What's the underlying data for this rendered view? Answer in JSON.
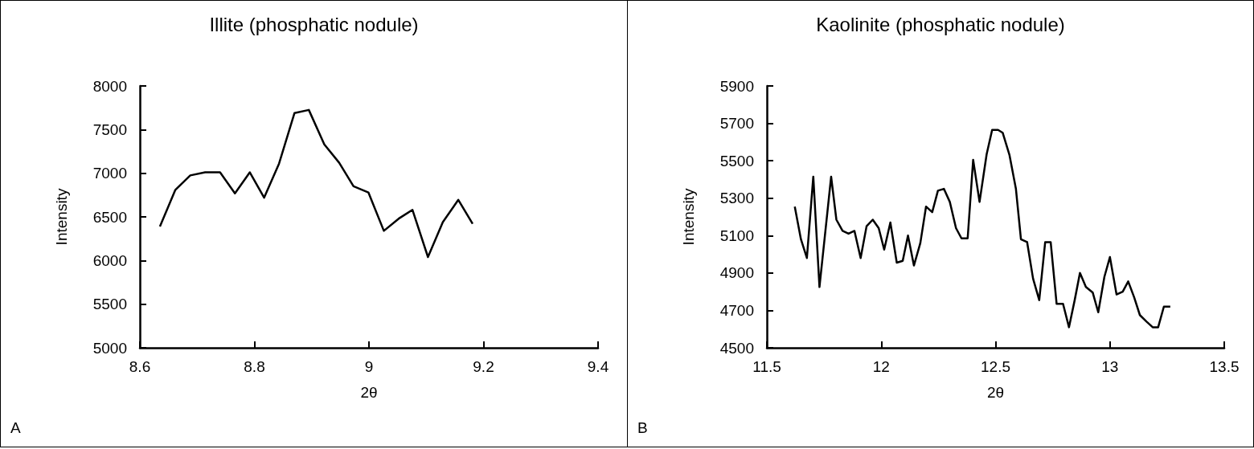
{
  "chart_data": [
    {
      "type": "line",
      "title": "Illite (phosphatic nodule)",
      "xlabel": "2θ",
      "ylabel": "Intensity",
      "color": "#000000",
      "marker": "none",
      "grid": false,
      "annotations": [
        "A"
      ],
      "x": [
        8.635,
        8.662,
        8.688,
        8.714,
        8.74,
        8.766,
        8.792,
        8.817,
        8.843,
        8.87,
        8.895,
        8.922,
        8.948,
        8.973,
        8.999,
        9.026,
        9.052,
        9.076,
        9.103,
        9.129,
        9.156,
        9.181
      ],
      "values": [
        6390,
        6810,
        6975,
        7010,
        7010,
        6770,
        7010,
        6720,
        7110,
        7690,
        7725,
        7330,
        7120,
        6850,
        6780,
        6340,
        6480,
        6580,
        6040,
        6440,
        6695,
        6420
      ],
      "xlim": [
        8.6,
        9.4
      ],
      "xticks": [
        8.6,
        8.8,
        9,
        9.2,
        9.4
      ],
      "ylim": [
        5000,
        8000
      ],
      "yticks": [
        5000,
        5500,
        6000,
        6500,
        7000,
        7500,
        8000
      ]
    },
    {
      "type": "line",
      "title": "Kaolinite (phosphatic nodule)",
      "xlabel": "2θ",
      "ylabel": "Intensity",
      "color": "#000000",
      "marker": "none",
      "grid": false,
      "annotations": [
        "B"
      ],
      "x": [
        11.622,
        11.649,
        11.675,
        11.703,
        11.73,
        11.756,
        11.781,
        11.804,
        11.831,
        11.857,
        11.883,
        11.91,
        11.936,
        11.963,
        11.989,
        12.013,
        12.04,
        12.068,
        12.094,
        12.117,
        12.143,
        12.171,
        12.196,
        12.223,
        12.248,
        12.274,
        12.3,
        12.327,
        12.351,
        12.378,
        12.402,
        12.43,
        12.461,
        12.485,
        12.511,
        12.531,
        12.561,
        12.589,
        12.611,
        12.638,
        12.664,
        12.691,
        12.717,
        12.741,
        12.767,
        12.795,
        12.821,
        12.846,
        12.869,
        12.895,
        12.925,
        12.949,
        12.976,
        13.0,
        13.029,
        13.056,
        13.08,
        13.106,
        13.131,
        13.16,
        13.187,
        13.211,
        13.236,
        13.264
      ],
      "values": [
        5255,
        5080,
        4980,
        5415,
        4825,
        5125,
        5415,
        5185,
        5125,
        5110,
        5125,
        4980,
        5150,
        5185,
        5140,
        5025,
        5170,
        4955,
        4965,
        5100,
        4940,
        5060,
        5255,
        5225,
        5340,
        5350,
        5280,
        5140,
        5085,
        5085,
        5505,
        5280,
        5535,
        5665,
        5665,
        5650,
        5530,
        5350,
        5080,
        5065,
        4870,
        4755,
        5065,
        5065,
        4735,
        4735,
        4610,
        4755,
        4900,
        4825,
        4795,
        4690,
        4880,
        4985,
        4785,
        4800,
        4855,
        4770,
        4675,
        4640,
        4610,
        4610,
        4720,
        4720
      ],
      "xlim": [
        11.5,
        13.5
      ],
      "xticks": [
        11.5,
        12,
        12.5,
        13,
        13.5
      ],
      "ylim": [
        4500,
        5900
      ],
      "yticks": [
        4500,
        4700,
        4900,
        5100,
        5300,
        5500,
        5700,
        5900
      ]
    }
  ]
}
